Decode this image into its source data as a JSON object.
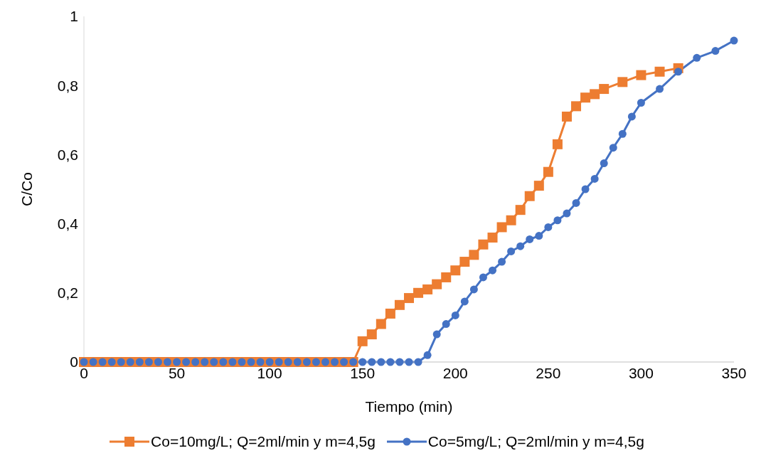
{
  "chart_data": {
    "type": "line",
    "xlabel": "Tiempo (min)",
    "ylabel": "C/Co",
    "xlim": [
      0,
      350
    ],
    "xticks": [
      0,
      50,
      100,
      150,
      200,
      250,
      300,
      350
    ],
    "ylim": [
      0,
      1
    ],
    "yticks": [
      {
        "value": 0,
        "label": "0"
      },
      {
        "value": 0.2,
        "label": "0,2"
      },
      {
        "value": 0.4,
        "label": "0,4"
      },
      {
        "value": 0.6,
        "label": "0,6"
      },
      {
        "value": 0.8,
        "label": "0,8"
      },
      {
        "value": 1,
        "label": "1"
      }
    ],
    "grid": false,
    "legend": "bottom",
    "series": [
      {
        "name": "Co=10mg/L; Q=2ml/min y m=4,5g",
        "color": "#ed7d31",
        "marker": "square",
        "x": [
          0,
          5,
          10,
          15,
          20,
          25,
          30,
          35,
          40,
          45,
          50,
          55,
          60,
          65,
          70,
          75,
          80,
          85,
          90,
          95,
          100,
          105,
          110,
          115,
          120,
          125,
          130,
          135,
          140,
          145,
          150,
          155,
          160,
          165,
          170,
          175,
          180,
          185,
          190,
          195,
          200,
          205,
          210,
          215,
          220,
          225,
          230,
          235,
          240,
          245,
          250,
          255,
          260,
          265,
          270,
          275,
          280,
          290,
          300,
          310,
          320
        ],
        "values": [
          0,
          0,
          0,
          0,
          0,
          0,
          0,
          0,
          0,
          0,
          0,
          0,
          0,
          0,
          0,
          0,
          0,
          0,
          0,
          0,
          0,
          0,
          0,
          0,
          0,
          0,
          0,
          0,
          0,
          0,
          0.06,
          0.08,
          0.11,
          0.14,
          0.165,
          0.185,
          0.2,
          0.21,
          0.225,
          0.245,
          0.265,
          0.29,
          0.31,
          0.34,
          0.36,
          0.39,
          0.41,
          0.44,
          0.48,
          0.51,
          0.55,
          0.63,
          0.71,
          0.74,
          0.765,
          0.775,
          0.79,
          0.81,
          0.83,
          0.84,
          0.85
        ]
      },
      {
        "name": "Co=5mg/L; Q=2ml/min y m=4,5g",
        "color": "#4472c4",
        "marker": "circle",
        "x": [
          0,
          5,
          10,
          15,
          20,
          25,
          30,
          35,
          40,
          45,
          50,
          55,
          60,
          65,
          70,
          75,
          80,
          85,
          90,
          95,
          100,
          105,
          110,
          115,
          120,
          125,
          130,
          135,
          140,
          145,
          150,
          155,
          160,
          165,
          170,
          175,
          180,
          185,
          190,
          195,
          200,
          205,
          210,
          215,
          220,
          225,
          230,
          235,
          240,
          245,
          250,
          255,
          260,
          265,
          270,
          275,
          280,
          285,
          290,
          295,
          300,
          310,
          320,
          330,
          340,
          350
        ],
        "values": [
          0,
          0,
          0,
          0,
          0,
          0,
          0,
          0,
          0,
          0,
          0,
          0,
          0,
          0,
          0,
          0,
          0,
          0,
          0,
          0,
          0,
          0,
          0,
          0,
          0,
          0,
          0,
          0,
          0,
          0,
          0,
          0,
          0,
          0,
          0,
          0,
          0,
          0.02,
          0.08,
          0.11,
          0.135,
          0.175,
          0.21,
          0.245,
          0.265,
          0.29,
          0.32,
          0.335,
          0.355,
          0.365,
          0.39,
          0.41,
          0.43,
          0.46,
          0.5,
          0.53,
          0.575,
          0.62,
          0.66,
          0.71,
          0.75,
          0.79,
          0.84,
          0.88,
          0.9,
          0.93
        ]
      }
    ]
  }
}
